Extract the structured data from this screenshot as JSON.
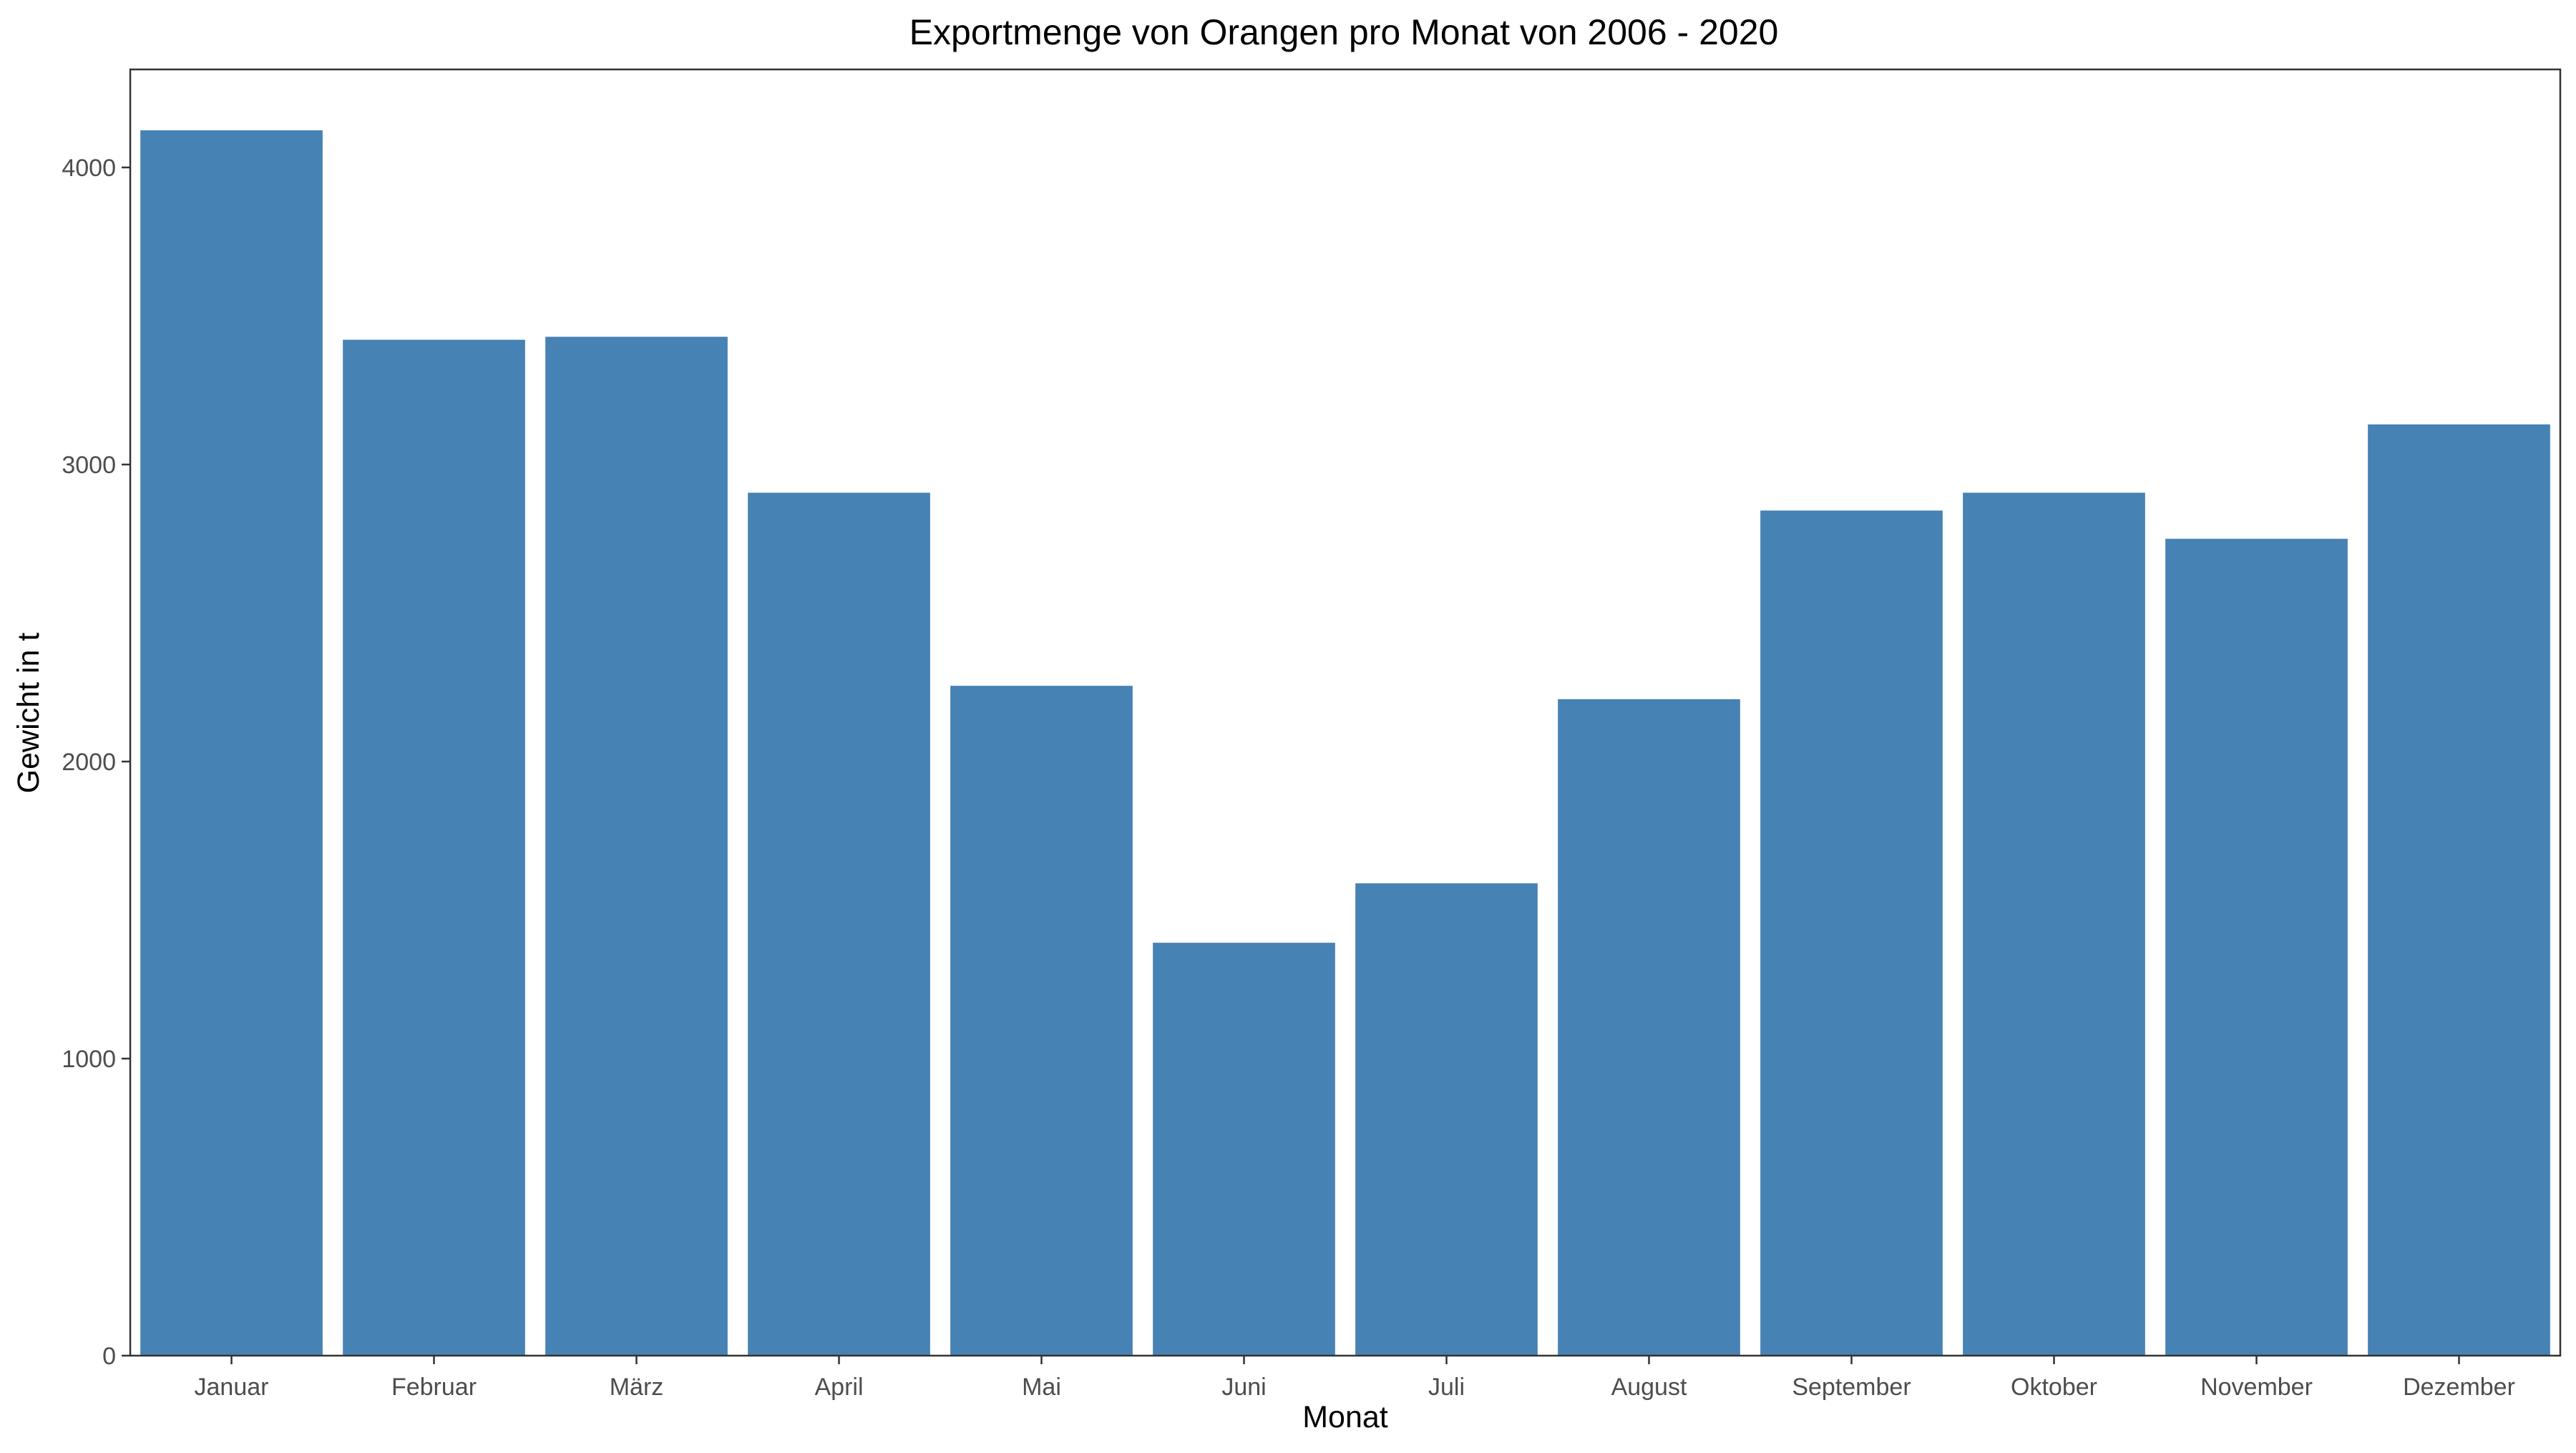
{
  "chart_data": {
    "type": "bar",
    "title": "Exportmenge von Orangen pro Monat von 2006 - 2020",
    "xlabel": "Monat",
    "ylabel": "Gewicht in t",
    "categories": [
      "Januar",
      "Februar",
      "März",
      "April",
      "Mai",
      "Juni",
      "Juli",
      "August",
      "September",
      "Oktober",
      "November",
      "Dezember"
    ],
    "values": [
      4125,
      3420,
      3430,
      2905,
      2255,
      1390,
      1590,
      2210,
      2845,
      2905,
      2750,
      3135
    ],
    "ylim": [
      0,
      4330
    ],
    "yticks": [
      0,
      1000,
      2000,
      3000,
      4000
    ],
    "ytick_labels": [
      "0",
      "1000",
      "2000",
      "3000",
      "4000"
    ],
    "grid": false,
    "legend": "none",
    "colors": {
      "bar": "#4682b4",
      "panel_border": "#333333",
      "tick_text": "#4d4d4d",
      "title_text": "#000000"
    }
  }
}
